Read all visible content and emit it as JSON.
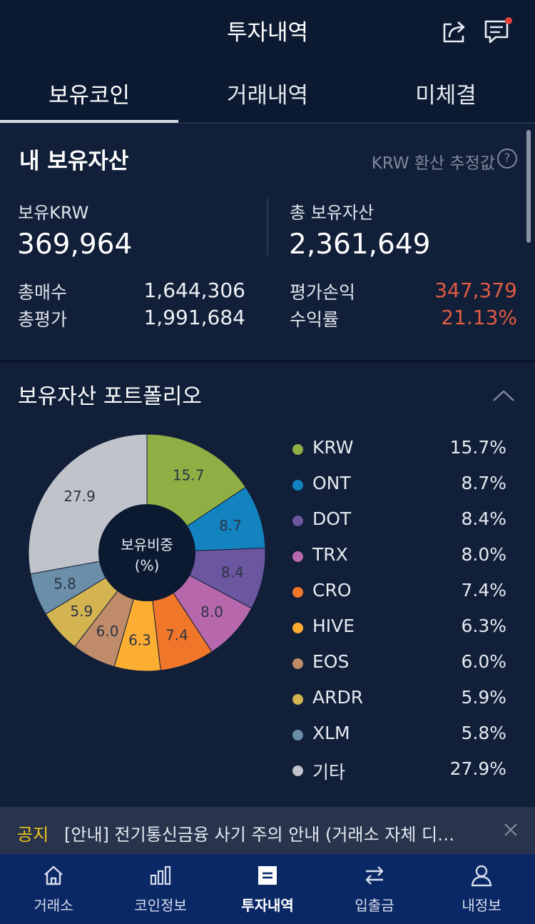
{
  "header": {
    "title": "투자내역",
    "share_icon": "share-icon",
    "chat_icon": "chat-icon"
  },
  "tabs": [
    {
      "label": "보유코인",
      "active": true
    },
    {
      "label": "거래내역",
      "active": false
    },
    {
      "label": "미체결",
      "active": false
    }
  ],
  "assets": {
    "title": "내 보유자산",
    "estimate_label": "KRW 환산 추정값",
    "help_symbol": "?",
    "krw_label": "보유KRW",
    "krw_value": "369,964",
    "total_label": "총 보유자산",
    "total_value": "2,361,649",
    "buy_label": "총매수",
    "buy_value": "1,644,306",
    "eval_label": "총평가",
    "eval_value": "1,991,684",
    "pl_label": "평가손익",
    "pl_value": "347,379",
    "rate_label": "수익률",
    "rate_value": "21.13%",
    "profit_color": "#e15b44"
  },
  "portfolio": {
    "title": "보유자산 포트폴리오",
    "center_label_1": "보유비중",
    "center_label_2": "(%)",
    "legend": [
      {
        "name": "KRW",
        "pct": "15.7%",
        "color": "#8faf45"
      },
      {
        "name": "ONT",
        "pct": "8.7%",
        "color": "#1383bf"
      },
      {
        "name": "DOT",
        "pct": "8.4%",
        "color": "#6b56a0"
      },
      {
        "name": "TRX",
        "pct": "8.0%",
        "color": "#b768ad"
      },
      {
        "name": "CRO",
        "pct": "7.4%",
        "color": "#f07629"
      },
      {
        "name": "HIVE",
        "pct": "6.3%",
        "color": "#fcae33"
      },
      {
        "name": "EOS",
        "pct": "6.0%",
        "color": "#c08b68"
      },
      {
        "name": "ARDR",
        "pct": "5.9%",
        "color": "#d3b451"
      },
      {
        "name": "XLM",
        "pct": "5.8%",
        "color": "#6b8ea9"
      },
      {
        "name": "기타",
        "pct": "27.9%",
        "color": "#c0c3ca"
      }
    ]
  },
  "chart_data": {
    "type": "pie",
    "categories": [
      "KRW",
      "ONT",
      "DOT",
      "TRX",
      "CRO",
      "HIVE",
      "EOS",
      "ARDR",
      "XLM",
      "기타"
    ],
    "values": [
      15.7,
      8.7,
      8.4,
      8.0,
      7.4,
      6.3,
      6.0,
      5.9,
      5.8,
      27.9
    ],
    "labels": [
      "15.7",
      "8.7",
      "8.4",
      "8.0",
      "7.4",
      "6.3",
      "6.0",
      "5.9",
      "5.8",
      "27.9"
    ],
    "colors": [
      "#8faf45",
      "#1383bf",
      "#6b56a0",
      "#b768ad",
      "#f07629",
      "#fcae33",
      "#c08b68",
      "#d3b451",
      "#6b8ea9",
      "#c0c3ca"
    ],
    "donut": true,
    "legend": "right"
  },
  "notice": {
    "label": "공지",
    "text": "[안내] 전기통신금융 사기 주의 안내 (거래소 자체 디…",
    "close_icon": "close-icon"
  },
  "nav": [
    {
      "label": "거래소",
      "icon": "home-icon",
      "active": false
    },
    {
      "label": "코인정보",
      "icon": "bar-chart-icon",
      "active": false
    },
    {
      "label": "투자내역",
      "icon": "document-icon",
      "active": true
    },
    {
      "label": "입출금",
      "icon": "transfer-icon",
      "active": false
    },
    {
      "label": "내정보",
      "icon": "user-icon",
      "active": false
    }
  ]
}
